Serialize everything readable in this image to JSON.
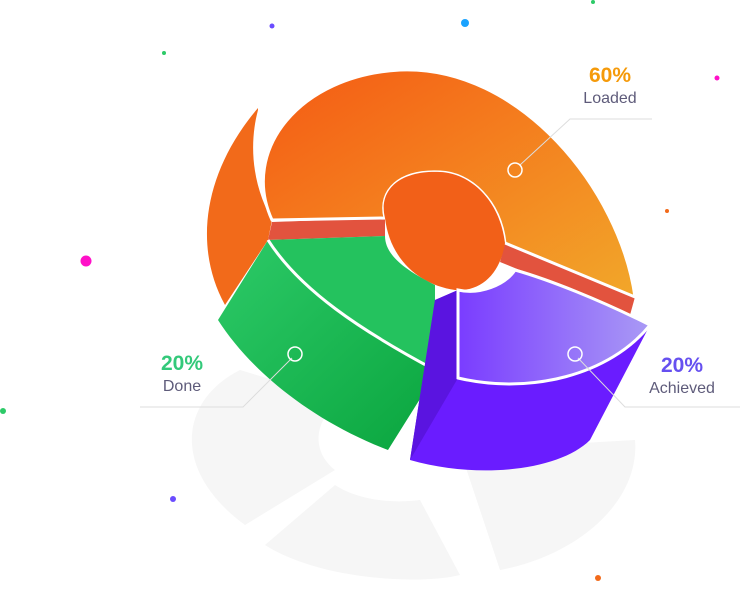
{
  "chart_data": {
    "type": "pie",
    "style": "3d-exploded",
    "slices": [
      {
        "label": "Loaded",
        "value": 60,
        "value_label": "60%",
        "color": "#f5861e"
      },
      {
        "label": "Done",
        "value": 20,
        "value_label": "20%",
        "color": "#2dca68"
      },
      {
        "label": "Achieved",
        "value": 20,
        "value_label": "20%",
        "color": "#6a2bff"
      }
    ],
    "legend": "none"
  },
  "colors": {
    "loaded_text": "#f59a0a",
    "done_text": "#33c97a",
    "achieved_text": "#6650f0",
    "label_text": "#5e5b7a"
  }
}
